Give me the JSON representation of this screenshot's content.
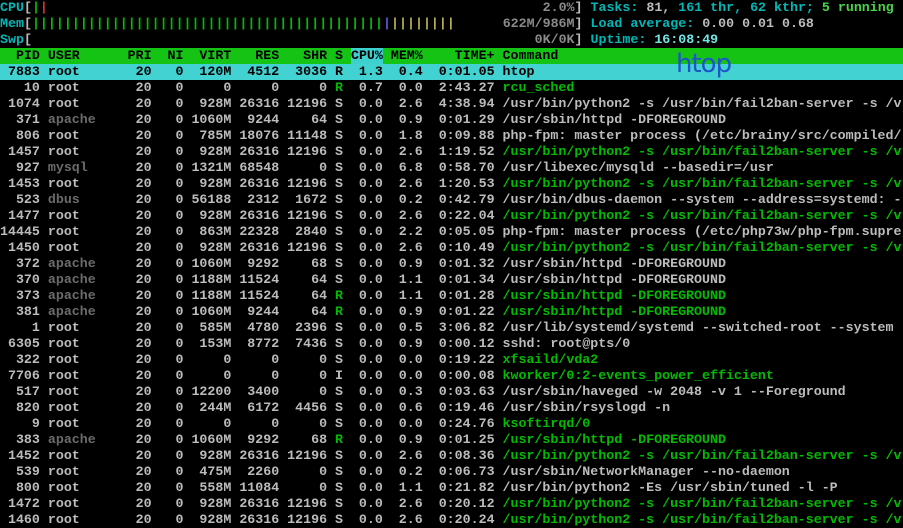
{
  "watermark": "htop",
  "colors": {
    "background": "#000000",
    "text": "#bcbcbc",
    "green_text": "#00bb00",
    "cyan_label": "#00b7b7",
    "bright_cyan": "#72e6e6",
    "dim_user": "#6b6b6b",
    "meter_text": "#8a8a8a",
    "header_bg": "#15c315",
    "selected_bg": "#42d2d2",
    "sort_column_bg": "#3ecfcf",
    "watermark_blue": "#1e56c8",
    "bar_red": "#cc3333",
    "bar_blue": "#5558e3",
    "bar_yellow": "#b3ae4e"
  },
  "meters": {
    "bracket_open": "[",
    "bracket_close": "]",
    "cpu": {
      "label": "CPU",
      "value_text": "2.0%",
      "bars": [
        [
          "green",
          1
        ],
        [
          "red",
          1
        ]
      ]
    },
    "mem": {
      "label": "Mem",
      "value_text": "622M/986M",
      "bars": [
        [
          "green",
          44
        ],
        [
          "blue",
          1
        ],
        [
          "yellow",
          8
        ]
      ]
    },
    "swp": {
      "label": "Swp",
      "value_text": "0K/0K",
      "bars": []
    }
  },
  "right_status": {
    "tasks": {
      "label": "Tasks: ",
      "count": "81, ",
      "threads": "161 thr, 62 kthr; ",
      "running": "5 running"
    },
    "load": {
      "label": "Load average: ",
      "values": "0.00 0.01 0.68"
    },
    "uptime": {
      "label": "Uptime: ",
      "value": "16:08:49"
    }
  },
  "process_table": {
    "sort_column": "CPU%",
    "headers": {
      "pid": "PID",
      "user": "USER",
      "pri": "PRI",
      "ni": "NI",
      "virt": "VIRT",
      "res": "RES",
      "shr": "SHR",
      "s": "S",
      "cpu": "CPU%",
      "mem": "MEM%",
      "time": "TIME+",
      "cmd": "Command"
    },
    "rows": [
      {
        "pid": "7883",
        "user": "root",
        "pri": "20",
        "ni": "0",
        "virt": "120M",
        "res": "4512",
        "shr": "3036",
        "s": "R",
        "cpu": "1.3",
        "mem": "0.4",
        "time": "0:01.05",
        "cmd": "htop",
        "selected": true
      },
      {
        "pid": "10",
        "user": "root",
        "pri": "20",
        "ni": "0",
        "virt": "0",
        "res": "0",
        "shr": "0",
        "s": "R",
        "cpu": "0.7",
        "mem": "0.0",
        "time": "2:43.27",
        "cmd": "rcu_sched",
        "s_green": true,
        "cmd_green": true
      },
      {
        "pid": "1074",
        "user": "root",
        "pri": "20",
        "ni": "0",
        "virt": "928M",
        "res": "26316",
        "shr": "12196",
        "s": "S",
        "cpu": "0.0",
        "mem": "2.6",
        "time": "4:38.94",
        "cmd": "/usr/bin/python2 -s /usr/bin/fail2ban-server -s /v"
      },
      {
        "pid": "371",
        "user": "apache",
        "pri": "20",
        "ni": "0",
        "virt": "1060M",
        "res": "9244",
        "shr": "64",
        "s": "S",
        "cpu": "0.0",
        "mem": "0.9",
        "time": "0:01.29",
        "cmd": "/usr/sbin/httpd -DFOREGROUND",
        "user_dim": true
      },
      {
        "pid": "806",
        "user": "root",
        "pri": "20",
        "ni": "0",
        "virt": "785M",
        "res": "18076",
        "shr": "11148",
        "s": "S",
        "cpu": "0.0",
        "mem": "1.8",
        "time": "0:09.88",
        "cmd": "php-fpm: master process (/etc/brainy/src/compiled/"
      },
      {
        "pid": "1457",
        "user": "root",
        "pri": "20",
        "ni": "0",
        "virt": "928M",
        "res": "26316",
        "shr": "12196",
        "s": "S",
        "cpu": "0.0",
        "mem": "2.6",
        "time": "1:19.52",
        "cmd": "/usr/bin/python2 -s /usr/bin/fail2ban-server -s /v",
        "cmd_green": true
      },
      {
        "pid": "927",
        "user": "mysql",
        "pri": "20",
        "ni": "0",
        "virt": "1321M",
        "res": "68548",
        "shr": "0",
        "s": "S",
        "cpu": "0.0",
        "mem": "6.8",
        "time": "0:58.70",
        "cmd": "/usr/libexec/mysqld --basedir=/usr",
        "user_dim": true
      },
      {
        "pid": "1453",
        "user": "root",
        "pri": "20",
        "ni": "0",
        "virt": "928M",
        "res": "26316",
        "shr": "12196",
        "s": "S",
        "cpu": "0.0",
        "mem": "2.6",
        "time": "1:20.53",
        "cmd": "/usr/bin/python2 -s /usr/bin/fail2ban-server -s /v",
        "cmd_green": true
      },
      {
        "pid": "523",
        "user": "dbus",
        "pri": "20",
        "ni": "0",
        "virt": "56188",
        "res": "2312",
        "shr": "1672",
        "s": "S",
        "cpu": "0.0",
        "mem": "0.2",
        "time": "0:42.79",
        "cmd": "/usr/bin/dbus-daemon --system --address=systemd: -",
        "user_dim": true
      },
      {
        "pid": "1477",
        "user": "root",
        "pri": "20",
        "ni": "0",
        "virt": "928M",
        "res": "26316",
        "shr": "12196",
        "s": "S",
        "cpu": "0.0",
        "mem": "2.6",
        "time": "0:22.04",
        "cmd": "/usr/bin/python2 -s /usr/bin/fail2ban-server -s /v",
        "cmd_green": true
      },
      {
        "pid": "14445",
        "user": "root",
        "pri": "20",
        "ni": "0",
        "virt": "863M",
        "res": "22328",
        "shr": "2840",
        "s": "S",
        "cpu": "0.0",
        "mem": "2.2",
        "time": "0:05.05",
        "cmd": "php-fpm: master process (/etc/php73w/php-fpm.supre"
      },
      {
        "pid": "1450",
        "user": "root",
        "pri": "20",
        "ni": "0",
        "virt": "928M",
        "res": "26316",
        "shr": "12196",
        "s": "S",
        "cpu": "0.0",
        "mem": "2.6",
        "time": "0:10.49",
        "cmd": "/usr/bin/python2 -s /usr/bin/fail2ban-server -s /v",
        "cmd_green": true
      },
      {
        "pid": "372",
        "user": "apache",
        "pri": "20",
        "ni": "0",
        "virt": "1060M",
        "res": "9292",
        "shr": "68",
        "s": "S",
        "cpu": "0.0",
        "mem": "0.9",
        "time": "0:01.32",
        "cmd": "/usr/sbin/httpd -DFOREGROUND",
        "user_dim": true
      },
      {
        "pid": "370",
        "user": "apache",
        "pri": "20",
        "ni": "0",
        "virt": "1188M",
        "res": "11524",
        "shr": "64",
        "s": "S",
        "cpu": "0.0",
        "mem": "1.1",
        "time": "0:01.34",
        "cmd": "/usr/sbin/httpd -DFOREGROUND",
        "user_dim": true
      },
      {
        "pid": "373",
        "user": "apache",
        "pri": "20",
        "ni": "0",
        "virt": "1188M",
        "res": "11524",
        "shr": "64",
        "s": "R",
        "cpu": "0.0",
        "mem": "1.1",
        "time": "0:01.28",
        "cmd": "/usr/sbin/httpd -DFOREGROUND",
        "user_dim": true,
        "s_green": true,
        "cmd_green": true
      },
      {
        "pid": "381",
        "user": "apache",
        "pri": "20",
        "ni": "0",
        "virt": "1060M",
        "res": "9244",
        "shr": "64",
        "s": "R",
        "cpu": "0.0",
        "mem": "0.9",
        "time": "0:01.22",
        "cmd": "/usr/sbin/httpd -DFOREGROUND",
        "user_dim": true,
        "s_green": true,
        "cmd_green": true
      },
      {
        "pid": "1",
        "user": "root",
        "pri": "20",
        "ni": "0",
        "virt": "585M",
        "res": "4780",
        "shr": "2396",
        "s": "S",
        "cpu": "0.0",
        "mem": "0.5",
        "time": "3:06.82",
        "cmd": "/usr/lib/systemd/systemd --switched-root --system "
      },
      {
        "pid": "6305",
        "user": "root",
        "pri": "20",
        "ni": "0",
        "virt": "153M",
        "res": "8772",
        "shr": "7436",
        "s": "S",
        "cpu": "0.0",
        "mem": "0.9",
        "time": "0:00.12",
        "cmd": "sshd: root@pts/0"
      },
      {
        "pid": "322",
        "user": "root",
        "pri": "20",
        "ni": "0",
        "virt": "0",
        "res": "0",
        "shr": "0",
        "s": "S",
        "cpu": "0.0",
        "mem": "0.0",
        "time": "0:19.22",
        "cmd": "xfsaild/vda2",
        "cmd_green": true
      },
      {
        "pid": "7706",
        "user": "root",
        "pri": "20",
        "ni": "0",
        "virt": "0",
        "res": "0",
        "shr": "0",
        "s": "I",
        "cpu": "0.0",
        "mem": "0.0",
        "time": "0:00.08",
        "cmd": "kworker/0:2-events_power_efficient",
        "cmd_green": true
      },
      {
        "pid": "517",
        "user": "root",
        "pri": "20",
        "ni": "0",
        "virt": "12200",
        "res": "3400",
        "shr": "0",
        "s": "S",
        "cpu": "0.0",
        "mem": "0.3",
        "time": "0:03.63",
        "cmd": "/usr/sbin/haveged -w 2048 -v 1 --Foreground"
      },
      {
        "pid": "820",
        "user": "root",
        "pri": "20",
        "ni": "0",
        "virt": "244M",
        "res": "6172",
        "shr": "4456",
        "s": "S",
        "cpu": "0.0",
        "mem": "0.6",
        "time": "0:19.46",
        "cmd": "/usr/sbin/rsyslogd -n"
      },
      {
        "pid": "9",
        "user": "root",
        "pri": "20",
        "ni": "0",
        "virt": "0",
        "res": "0",
        "shr": "0",
        "s": "S",
        "cpu": "0.0",
        "mem": "0.0",
        "time": "0:24.76",
        "cmd": "ksoftirqd/0",
        "cmd_green": true
      },
      {
        "pid": "383",
        "user": "apache",
        "pri": "20",
        "ni": "0",
        "virt": "1060M",
        "res": "9292",
        "shr": "68",
        "s": "R",
        "cpu": "0.0",
        "mem": "0.9",
        "time": "0:01.25",
        "cmd": "/usr/sbin/httpd -DFOREGROUND",
        "user_dim": true,
        "s_green": true,
        "cmd_green": true
      },
      {
        "pid": "1452",
        "user": "root",
        "pri": "20",
        "ni": "0",
        "virt": "928M",
        "res": "26316",
        "shr": "12196",
        "s": "S",
        "cpu": "0.0",
        "mem": "2.6",
        "time": "0:08.36",
        "cmd": "/usr/bin/python2 -s /usr/bin/fail2ban-server -s /v",
        "cmd_green": true
      },
      {
        "pid": "539",
        "user": "root",
        "pri": "20",
        "ni": "0",
        "virt": "475M",
        "res": "2260",
        "shr": "0",
        "s": "S",
        "cpu": "0.0",
        "mem": "0.2",
        "time": "0:06.73",
        "cmd": "/usr/sbin/NetworkManager --no-daemon"
      },
      {
        "pid": "800",
        "user": "root",
        "pri": "20",
        "ni": "0",
        "virt": "558M",
        "res": "11084",
        "shr": "0",
        "s": "S",
        "cpu": "0.0",
        "mem": "1.1",
        "time": "0:21.82",
        "cmd": "/usr/bin/python2 -Es /usr/sbin/tuned -l -P"
      },
      {
        "pid": "1472",
        "user": "root",
        "pri": "20",
        "ni": "0",
        "virt": "928M",
        "res": "26316",
        "shr": "12196",
        "s": "S",
        "cpu": "0.0",
        "mem": "2.6",
        "time": "0:20.12",
        "cmd": "/usr/bin/python2 -s /usr/bin/fail2ban-server -s /v",
        "cmd_green": true
      },
      {
        "pid": "1460",
        "user": "root",
        "pri": "20",
        "ni": "0",
        "virt": "928M",
        "res": "26316",
        "shr": "12196",
        "s": "S",
        "cpu": "0.0",
        "mem": "2.6",
        "time": "0:20.24",
        "cmd": "/usr/bin/python2 -s /usr/bin/fail2ban-server -s /v",
        "cmd_green": true,
        "partial": true
      }
    ]
  }
}
